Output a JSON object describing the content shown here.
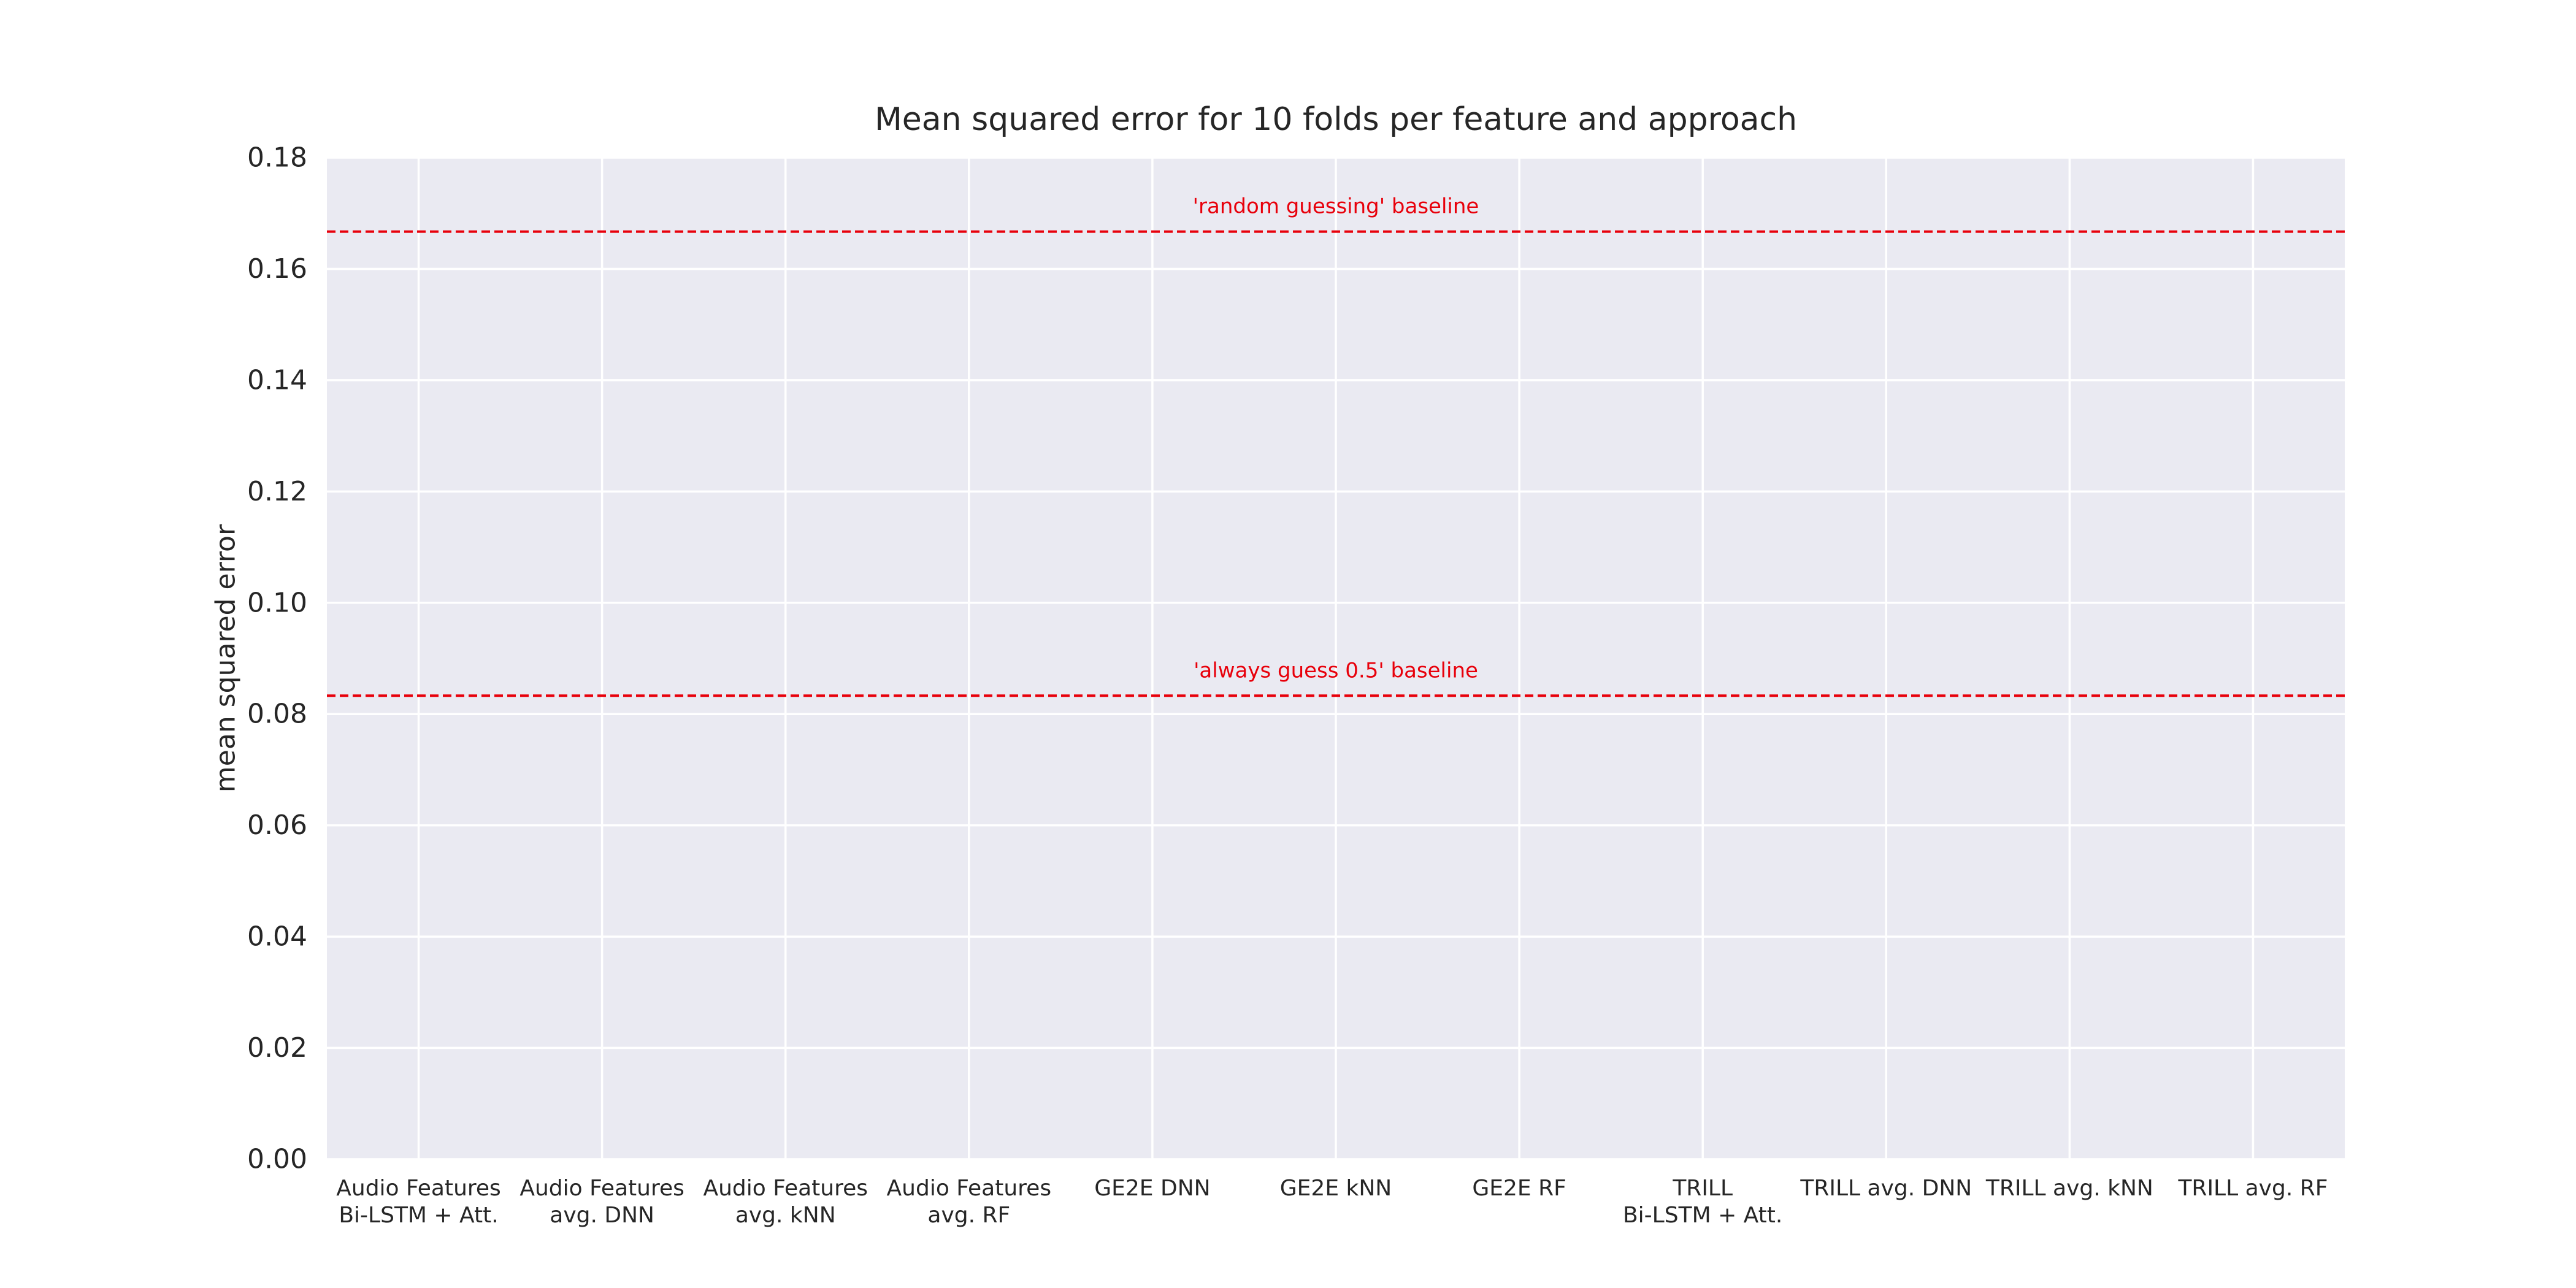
{
  "chart_data": {
    "type": "bar",
    "title": "Mean squared error for 10 folds per feature and approach",
    "xlabel": "",
    "ylabel": "mean squared error",
    "ylim": [
      0,
      0.18
    ],
    "yticks": [
      "0.00",
      "0.02",
      "0.04",
      "0.06",
      "0.08",
      "0.10",
      "0.12",
      "0.14",
      "0.16",
      "0.18"
    ],
    "ytick_values": [
      0,
      0.02,
      0.04,
      0.06,
      0.08,
      0.1,
      0.12,
      0.14,
      0.16,
      0.18
    ],
    "categories": [
      [
        "Audio Features",
        "Bi-LSTM + Att."
      ],
      [
        "Audio Features",
        "avg. DNN"
      ],
      [
        "Audio Features",
        "avg. kNN"
      ],
      [
        "Audio Features",
        "avg. RF"
      ],
      [
        "GE2E DNN"
      ],
      [
        "GE2E kNN"
      ],
      [
        "GE2E RF"
      ],
      [
        "TRILL",
        "Bi-LSTM + Att."
      ],
      [
        "TRILL avg. DNN"
      ],
      [
        "TRILL avg. kNN"
      ],
      [
        "TRILL avg. RF"
      ]
    ],
    "grid": true,
    "baselines": [
      {
        "label": "'random guessing' baseline",
        "value": 0.1667,
        "color": "#e8000b"
      },
      {
        "label": "'always guess 0.5' baseline",
        "value": 0.0833,
        "color": "#e8000b"
      }
    ],
    "colors": {
      "background": "#eaeaf2",
      "grid": "#ffffff",
      "text": "#262626"
    }
  }
}
